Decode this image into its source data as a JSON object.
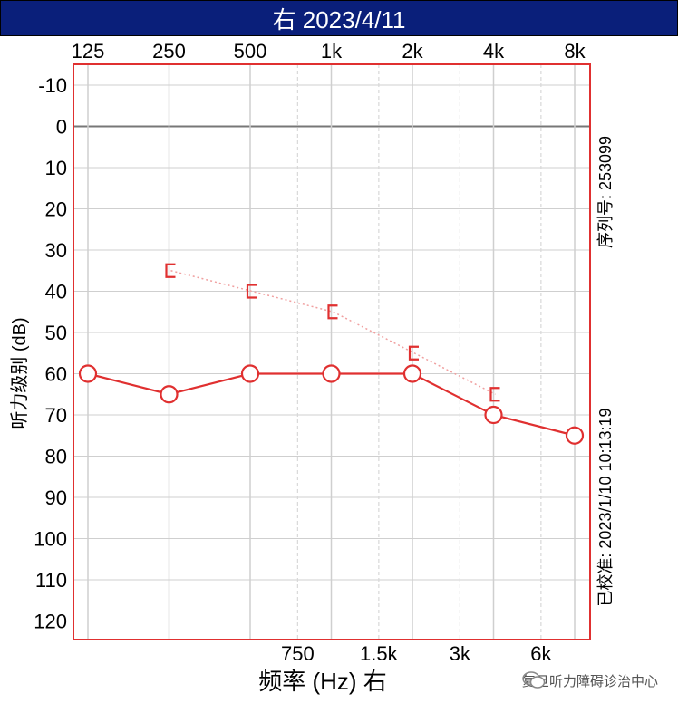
{
  "title": "右 2023/4/11",
  "chart_data": {
    "type": "line",
    "title": "右 2023/4/11",
    "xlabel": "频率 (Hz) 右",
    "ylabel": "听力级别 (dB)",
    "x_top_ticks": [
      "125",
      "250",
      "500",
      "1k",
      "2k",
      "4k",
      "8k"
    ],
    "x_bottom_ticks": [
      "750",
      "1.5k",
      "3k",
      "6k"
    ],
    "y_ticks": [
      -10,
      0,
      10,
      20,
      30,
      40,
      50,
      60,
      70,
      80,
      90,
      100,
      110,
      120
    ],
    "ylim": [
      -10,
      120
    ],
    "y_inverted": true,
    "x_scale": "log",
    "series": [
      {
        "marker": "circle",
        "color": "#e03030",
        "style": "solid",
        "x": [
          125,
          250,
          500,
          1000,
          2000,
          4000,
          8000
        ],
        "y": [
          60,
          65,
          60,
          60,
          60,
          70,
          75
        ]
      },
      {
        "marker": "bracket",
        "color": "#e03030",
        "style": "dotted",
        "x": [
          250,
          500,
          1000,
          2000,
          4000
        ],
        "y": [
          35,
          40,
          45,
          55,
          65
        ]
      }
    ],
    "right_labels": {
      "serial": "序列号: 253099",
      "calibrated": "已校准: 2023/1/10 10:13:19"
    }
  },
  "watermark": {
    "text": "复旦听力障碍诊治中心",
    "icon": "wechat-icon"
  }
}
